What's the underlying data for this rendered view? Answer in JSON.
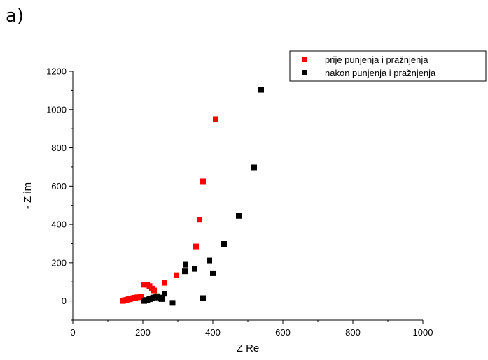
{
  "panel_label": "a)",
  "chart_data": {
    "type": "scatter",
    "title": "",
    "xlabel": "Z Re",
    "ylabel": "- Z im",
    "xlim": [
      0,
      1000
    ],
    "ylim": [
      -100,
      1200
    ],
    "xticks": [
      0,
      200,
      400,
      600,
      800,
      1000
    ],
    "yticks": [
      0,
      200,
      400,
      600,
      800,
      1000,
      1200
    ],
    "grid": false,
    "legend_position": "top-right",
    "series": [
      {
        "name": "prije punjenja i pražnjenja",
        "color": "#ff0000",
        "marker": "square",
        "points": [
          [
            143,
            0
          ],
          [
            145,
            2
          ],
          [
            147,
            3
          ],
          [
            150,
            4
          ],
          [
            153,
            5
          ],
          [
            156,
            7
          ],
          [
            160,
            9
          ],
          [
            164,
            11
          ],
          [
            168,
            13
          ],
          [
            173,
            15
          ],
          [
            178,
            17
          ],
          [
            184,
            19
          ],
          [
            190,
            20
          ],
          [
            196,
            21
          ],
          [
            204,
            85
          ],
          [
            212,
            85
          ],
          [
            219,
            78
          ],
          [
            226,
            65
          ],
          [
            232,
            55
          ],
          [
            262,
            95
          ],
          [
            296,
            135
          ],
          [
            322,
            190
          ],
          [
            352,
            285
          ],
          [
            362,
            425
          ],
          [
            372,
            625
          ],
          [
            408,
            950
          ]
        ]
      },
      {
        "name": "nakon punjenja i pražnjenja",
        "color": "#000000",
        "marker": "square",
        "points": [
          [
            204,
            0
          ],
          [
            208,
            3
          ],
          [
            212,
            5
          ],
          [
            216,
            8
          ],
          [
            220,
            10
          ],
          [
            224,
            13
          ],
          [
            228,
            15
          ],
          [
            232,
            18
          ],
          [
            236,
            20
          ],
          [
            241,
            25
          ],
          [
            246,
            18
          ],
          [
            250,
            12
          ],
          [
            254,
            10
          ],
          [
            262,
            38
          ],
          [
            285,
            -10
          ],
          [
            320,
            155
          ],
          [
            322,
            190
          ],
          [
            348,
            168
          ],
          [
            372,
            15
          ],
          [
            390,
            212
          ],
          [
            400,
            145
          ],
          [
            432,
            298
          ],
          [
            474,
            445
          ],
          [
            518,
            698
          ],
          [
            538,
            1103
          ]
        ]
      }
    ]
  }
}
